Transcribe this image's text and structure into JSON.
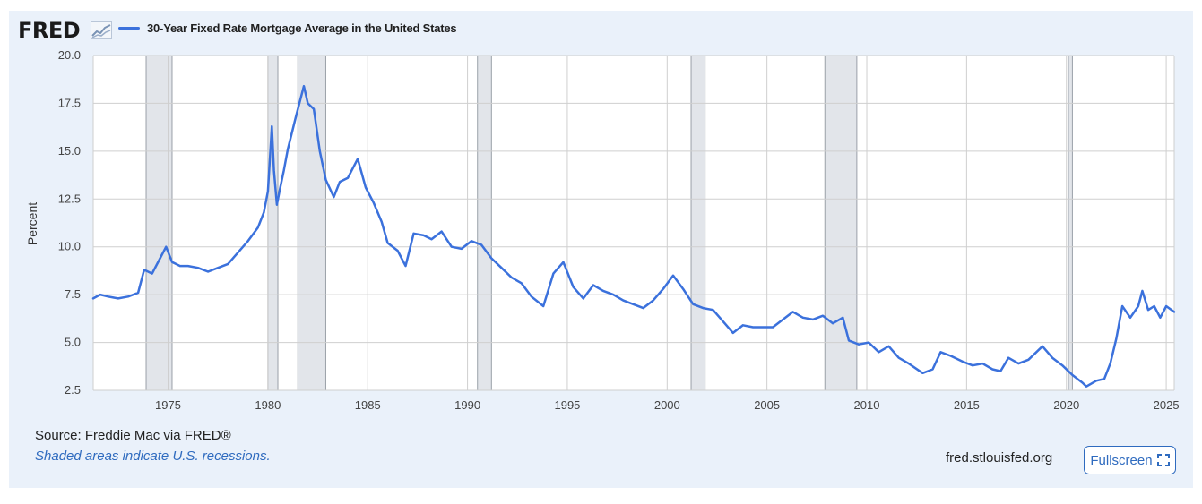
{
  "header": {
    "logo_text": "FRED",
    "logo_icon": "trend-chart-icon",
    "legend_label": "30-Year Fixed Rate Mortgage Average in the United States"
  },
  "footer": {
    "source": "Source: Freddie Mac via FRED®",
    "note": "Shaded areas indicate U.S. recessions.",
    "url": "fred.stlouisfed.org",
    "fullscreen_label": "Fullscreen",
    "fullscreen_icon": "expand-icon"
  },
  "colors": {
    "line": "#3b71dc",
    "recession": "#e2e5ea",
    "grid": "#cfcfcf",
    "frame": "#eaf1fa",
    "accent": "#2f6bbf"
  },
  "chart_data": {
    "type": "line",
    "title": "30-Year Fixed Rate Mortgage Average in the United States",
    "ylabel": "Percent",
    "xlabel": "",
    "xlim": [
      1971.25,
      2025.4
    ],
    "ylim": [
      2.5,
      20.0
    ],
    "yticks": [
      "2.5",
      "5.0",
      "7.5",
      "10.0",
      "12.5",
      "15.0",
      "17.5",
      "20.0"
    ],
    "xticks": [
      "1975",
      "1980",
      "1985",
      "1990",
      "1995",
      "2000",
      "2005",
      "2010",
      "2015",
      "2020",
      "2025"
    ],
    "grid": true,
    "legend_position": "top-left",
    "recessions": [
      [
        1973.9,
        1975.2
      ],
      [
        1980.0,
        1980.5
      ],
      [
        1981.5,
        1982.9
      ],
      [
        1990.5,
        1991.2
      ],
      [
        2001.2,
        2001.9
      ],
      [
        2007.9,
        2009.5
      ],
      [
        2020.1,
        2020.3
      ]
    ],
    "series": [
      {
        "name": "30-Year Fixed Rate Mortgage Average in the United States",
        "x": [
          1971.25,
          1971.6,
          1972.0,
          1972.5,
          1973.0,
          1973.5,
          1973.8,
          1974.2,
          1974.6,
          1974.9,
          1975.2,
          1975.6,
          1976.0,
          1976.5,
          1977.0,
          1977.5,
          1978.0,
          1978.5,
          1979.0,
          1979.5,
          1979.8,
          1980.0,
          1980.2,
          1980.3,
          1980.45,
          1980.6,
          1980.8,
          1981.0,
          1981.4,
          1981.8,
          1982.0,
          1982.3,
          1982.6,
          1982.9,
          1983.3,
          1983.6,
          1984.0,
          1984.5,
          1984.9,
          1985.3,
          1985.7,
          1986.0,
          1986.5,
          1986.9,
          1987.3,
          1987.8,
          1988.2,
          1988.7,
          1989.2,
          1989.7,
          1990.2,
          1990.7,
          1991.2,
          1991.7,
          1992.2,
          1992.7,
          1993.2,
          1993.8,
          1994.3,
          1994.8,
          1995.3,
          1995.8,
          1996.3,
          1996.8,
          1997.3,
          1997.8,
          1998.3,
          1998.8,
          1999.3,
          1999.8,
          2000.3,
          2000.8,
          2001.3,
          2001.8,
          2002.3,
          2002.8,
          2003.3,
          2003.8,
          2004.3,
          2004.8,
          2005.3,
          2005.8,
          2006.3,
          2006.8,
          2007.3,
          2007.8,
          2008.3,
          2008.8,
          2009.1,
          2009.6,
          2010.1,
          2010.6,
          2011.1,
          2011.6,
          2012.1,
          2012.8,
          2013.3,
          2013.7,
          2014.2,
          2014.8,
          2015.3,
          2015.8,
          2016.3,
          2016.7,
          2017.1,
          2017.6,
          2018.1,
          2018.8,
          2019.3,
          2019.8,
          2020.3,
          2020.8,
          2021.0,
          2021.5,
          2021.9,
          2022.2,
          2022.5,
          2022.8,
          2023.2,
          2023.6,
          2023.8,
          2024.1,
          2024.4,
          2024.7,
          2025.0,
          2025.4
        ],
        "values": [
          7.3,
          7.5,
          7.4,
          7.3,
          7.4,
          7.6,
          8.8,
          8.6,
          9.4,
          10.0,
          9.2,
          9.0,
          9.0,
          8.9,
          8.7,
          8.9,
          9.1,
          9.7,
          10.3,
          11.0,
          11.8,
          12.9,
          16.3,
          14.0,
          12.2,
          13.0,
          14.0,
          15.1,
          16.8,
          18.4,
          17.5,
          17.2,
          15.0,
          13.5,
          12.6,
          13.4,
          13.6,
          14.6,
          13.1,
          12.3,
          11.3,
          10.2,
          9.8,
          9.0,
          10.7,
          10.6,
          10.4,
          10.8,
          10.0,
          9.9,
          10.3,
          10.1,
          9.4,
          8.9,
          8.4,
          8.1,
          7.4,
          6.9,
          8.6,
          9.2,
          7.9,
          7.3,
          8.0,
          7.7,
          7.5,
          7.2,
          7.0,
          6.8,
          7.2,
          7.8,
          8.5,
          7.8,
          7.0,
          6.8,
          6.7,
          6.1,
          5.5,
          5.9,
          5.8,
          5.8,
          5.8,
          6.2,
          6.6,
          6.3,
          6.2,
          6.4,
          6.0,
          6.3,
          5.1,
          4.9,
          5.0,
          4.5,
          4.8,
          4.2,
          3.9,
          3.4,
          3.6,
          4.5,
          4.3,
          4.0,
          3.8,
          3.9,
          3.6,
          3.5,
          4.2,
          3.9,
          4.1,
          4.8,
          4.2,
          3.8,
          3.3,
          2.9,
          2.7,
          3.0,
          3.1,
          3.9,
          5.2,
          6.9,
          6.3,
          6.9,
          7.7,
          6.7,
          6.9,
          6.3,
          6.9,
          6.6
        ]
      }
    ]
  }
}
